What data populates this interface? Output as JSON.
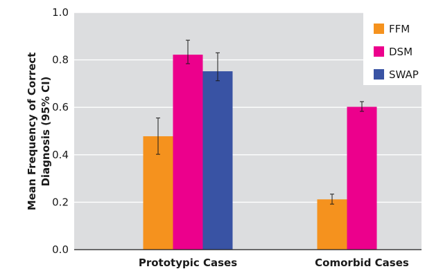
{
  "chart_data": {
    "type": "bar",
    "title": "",
    "xlabel": "",
    "ylabel_lines": [
      "Mean Frequency of Correct",
      "Diagnosis (95% CI)"
    ],
    "ylim": [
      0,
      1.0
    ],
    "yticks": [
      "0.0",
      "0.2",
      "0.4",
      "0.6",
      "0.8",
      "1.0"
    ],
    "categories": [
      "Prototypic Cases",
      "Comorbid Cases"
    ],
    "grid": true,
    "legend": "top-right",
    "series": [
      {
        "name": "FFM",
        "color": "#f5921e",
        "values": [
          0.478,
          0.212
        ],
        "err_low": [
          0.402,
          0.192
        ],
        "err_high": [
          0.555,
          0.234
        ]
      },
      {
        "name": "DSM",
        "color": "#ec008c",
        "values": [
          0.822,
          0.602
        ],
        "err_low": [
          0.784,
          0.583
        ],
        "err_high": [
          0.883,
          0.624
        ]
      },
      {
        "name": "SWAP",
        "color": "#3953a4",
        "values": [
          0.752,
          null
        ],
        "err_low": [
          0.712,
          null
        ],
        "err_high": [
          0.83,
          null
        ]
      }
    ]
  },
  "colors": {
    "plot_bg": "#dcdddf",
    "grid": "#ffffff",
    "axis": "#1a1a1a",
    "legend_bg": "#ffffff"
  }
}
